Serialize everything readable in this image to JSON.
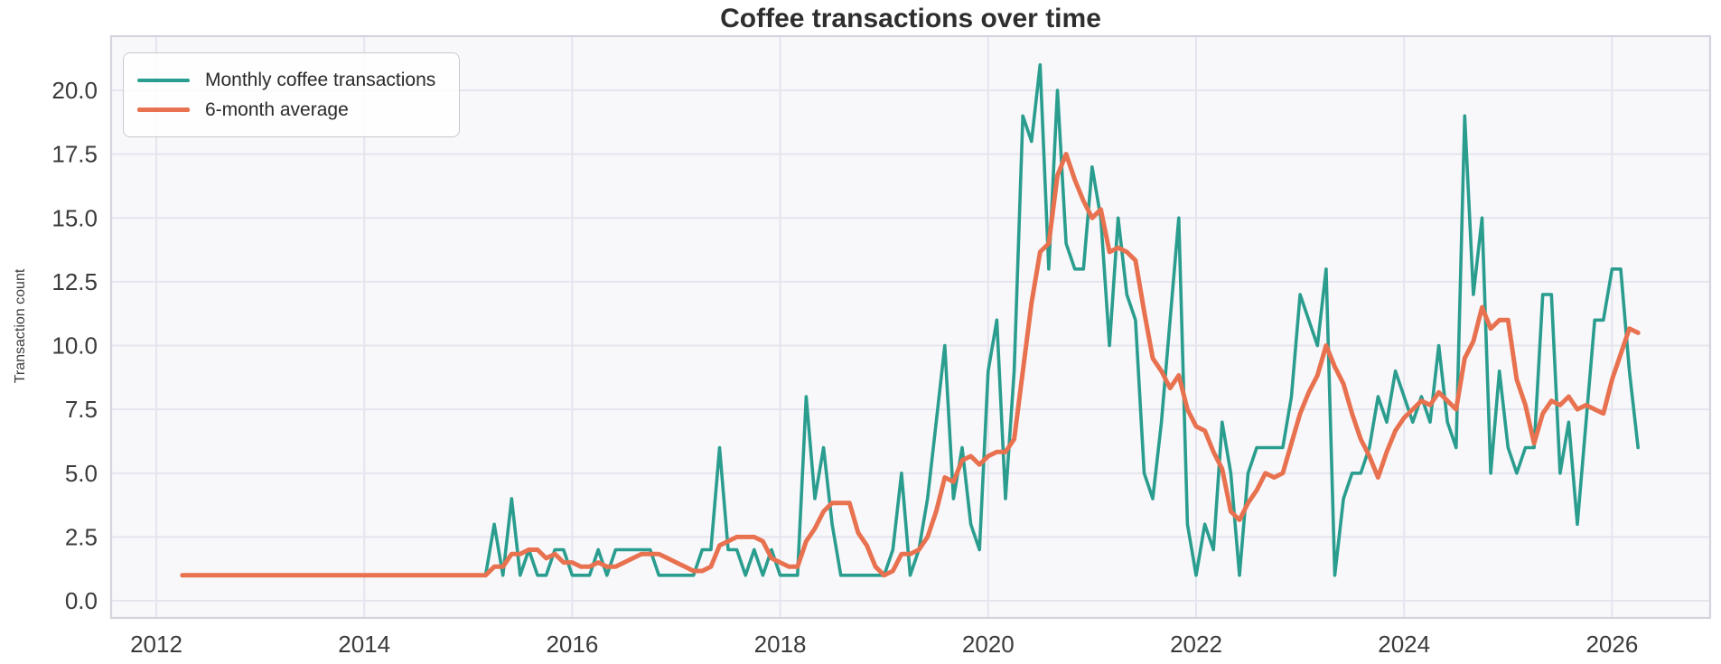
{
  "title": "Coffee transactions over time",
  "y_axis": {
    "label": "Transaction count"
  },
  "colors": {
    "monthly_line": "#2a9d8f",
    "average_line": "#e8714f",
    "plot_background": "#f8f8fb",
    "gridline": "#e5e5ee",
    "spine": "#d4d4de",
    "tick_text": "#3b3b3b",
    "title_text": "#2e2e2e"
  },
  "legend": {
    "position": "upper left",
    "entries": [
      "Monthly coffee transactions",
      "6-month average"
    ]
  },
  "chart_data": {
    "type": "line",
    "title": "Coffee transactions over time",
    "xlabel": "",
    "ylabel": "Transaction count",
    "x_start": "2012-03",
    "x_step": "1 month",
    "x_end": "2026-03",
    "xticks": [
      2012,
      2014,
      2016,
      2018,
      2020,
      2022,
      2024,
      2026
    ],
    "yticks": [
      0.0,
      2.5,
      5.0,
      7.5,
      10.0,
      12.5,
      15.0,
      17.5,
      20.0
    ],
    "ylim": [
      -0.9,
      22.1
    ],
    "xlim_years": [
      2011.57,
      2026.94
    ],
    "grid": true,
    "legend_position": "upper left",
    "series": [
      {
        "name": "Monthly coffee transactions",
        "color": "#2a9d8f",
        "values": [
          1,
          1,
          1,
          1,
          1,
          1,
          1,
          1,
          1,
          1,
          1,
          1,
          1,
          1,
          1,
          1,
          1,
          1,
          1,
          1,
          1,
          1,
          1,
          1,
          1,
          1,
          1,
          1,
          1,
          1,
          1,
          1,
          1,
          1,
          1,
          1,
          3,
          1,
          4,
          1,
          2,
          1,
          1,
          2,
          2,
          1,
          1,
          1,
          2,
          1,
          2,
          2,
          2,
          2,
          2,
          1,
          1,
          1,
          1,
          1,
          2,
          2,
          6,
          2,
          2,
          1,
          2,
          1,
          2,
          1,
          1,
          1,
          8,
          4,
          6,
          3,
          1,
          1,
          1,
          1,
          1,
          1,
          2,
          5,
          1,
          2,
          4,
          7,
          10,
          4,
          6,
          3,
          2,
          9,
          11,
          4,
          9,
          19,
          18,
          21,
          13,
          20,
          14,
          13,
          13,
          17,
          15,
          10,
          15,
          12,
          11,
          5,
          4,
          7,
          11,
          15,
          3,
          1,
          3,
          2,
          7,
          5,
          1,
          5,
          6,
          6,
          6,
          6,
          8,
          12,
          11,
          10,
          13,
          1,
          4,
          5,
          5,
          6,
          8,
          7,
          9,
          8,
          7,
          8,
          7,
          10,
          7,
          6,
          19,
          12,
          15,
          5,
          9,
          6,
          5,
          6,
          6,
          12,
          12,
          5,
          7,
          3,
          7,
          11,
          11,
          13,
          13,
          9,
          6
        ]
      },
      {
        "name": "6-month average",
        "color": "#e8714f",
        "derived": {
          "method": "trailing_mean",
          "window_months": 6,
          "min_periods": 1,
          "source": "Monthly coffee transactions"
        }
      }
    ]
  }
}
